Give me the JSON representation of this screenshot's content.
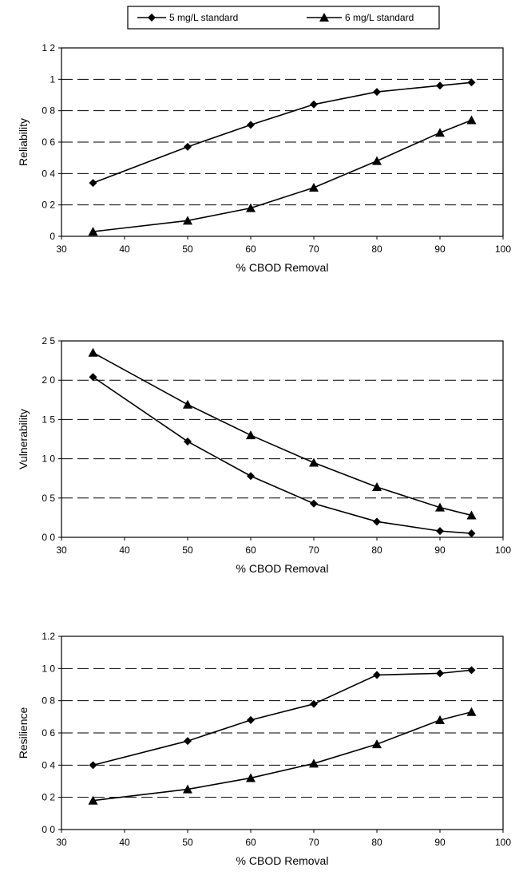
{
  "legend": [
    {
      "label": "5 mg/L standard",
      "marker": "diamond"
    },
    {
      "label": "6 mg/L standard",
      "marker": "triangle"
    }
  ],
  "colors": {
    "line": "#000000",
    "grid": "#000000",
    "background": "#ffffff"
  },
  "chart_data": [
    {
      "type": "line",
      "title": "",
      "xlabel": "% CBOD Removal",
      "ylabel": "Reliability",
      "xlim": [
        30,
        100
      ],
      "ylim": [
        0,
        1.2
      ],
      "xticks": [
        30,
        40,
        50,
        60,
        70,
        80,
        90,
        100
      ],
      "yticks": [
        0,
        0.2,
        0.4,
        0.6,
        0.8,
        1,
        1.2
      ],
      "xtick_labels": [
        "30",
        "40",
        "50",
        "60",
        "70",
        "80",
        "90",
        "100"
      ],
      "ytick_labels": [
        "0",
        "0 2",
        "0 4",
        "0 6",
        "0 8",
        "1",
        "1 2"
      ],
      "grid": "horizontal-dashed",
      "x": [
        35,
        50,
        60,
        70,
        80,
        90,
        95
      ],
      "series": [
        {
          "name": "5 mg/L standard",
          "marker": "diamond",
          "values": [
            0.34,
            0.57,
            0.71,
            0.84,
            0.92,
            0.96,
            0.98
          ]
        },
        {
          "name": "6 mg/L standard",
          "marker": "triangle",
          "values": [
            0.03,
            0.1,
            0.18,
            0.31,
            0.48,
            0.66,
            0.74
          ]
        }
      ]
    },
    {
      "type": "line",
      "title": "",
      "xlabel": "% CBOD Removal",
      "ylabel": "Vulnerability",
      "xlim": [
        30,
        100
      ],
      "ylim": [
        0,
        2.5
      ],
      "xticks": [
        30,
        40,
        50,
        60,
        70,
        80,
        90,
        100
      ],
      "yticks": [
        0,
        0.5,
        1.0,
        1.5,
        2.0,
        2.5
      ],
      "xtick_labels": [
        "30",
        "40",
        "50",
        "60",
        "70",
        "80",
        "90",
        "100"
      ],
      "ytick_labels": [
        "0 0",
        "0 5",
        "1 0",
        "1 5",
        "2 0",
        "2 5"
      ],
      "grid": "horizontal-dashed",
      "x": [
        35,
        50,
        60,
        70,
        80,
        90,
        95
      ],
      "series": [
        {
          "name": "5 mg/L standard",
          "marker": "diamond",
          "values": [
            2.04,
            1.22,
            0.78,
            0.43,
            0.2,
            0.08,
            0.05
          ]
        },
        {
          "name": "6 mg/L standard",
          "marker": "triangle",
          "values": [
            2.35,
            1.69,
            1.3,
            0.95,
            0.64,
            0.38,
            0.28
          ]
        }
      ]
    },
    {
      "type": "line",
      "title": "",
      "xlabel": "% CBOD Removal",
      "ylabel": "Resilience",
      "xlim": [
        30,
        100
      ],
      "ylim": [
        0,
        1.2
      ],
      "xticks": [
        30,
        40,
        50,
        60,
        70,
        80,
        90,
        100
      ],
      "yticks": [
        0,
        0.2,
        0.4,
        0.6,
        0.8,
        1,
        1.2
      ],
      "xtick_labels": [
        "30",
        "40",
        "50",
        "60",
        "70",
        "80",
        "90",
        "100"
      ],
      "ytick_labels": [
        "0 0",
        "0 2",
        "0 4",
        "0 6",
        "0 8",
        "1 0",
        "1.2"
      ],
      "grid": "horizontal-dashed",
      "x": [
        35,
        50,
        60,
        70,
        80,
        90,
        95
      ],
      "series": [
        {
          "name": "5 mg/L standard",
          "marker": "diamond",
          "values": [
            0.4,
            0.55,
            0.68,
            0.78,
            0.96,
            0.97,
            0.99
          ]
        },
        {
          "name": "6 mg/L standard",
          "marker": "triangle",
          "values": [
            0.18,
            0.25,
            0.32,
            0.41,
            0.53,
            0.68,
            0.73
          ]
        }
      ]
    }
  ]
}
